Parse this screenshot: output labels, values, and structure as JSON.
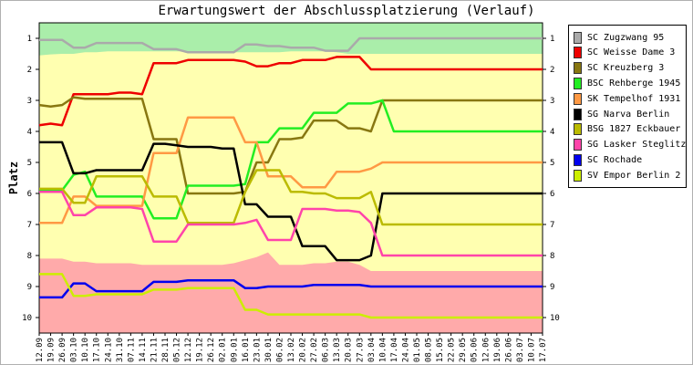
{
  "chart_data": {
    "type": "line",
    "title": "Erwartungswert der Abschlussplatzierung (Verlauf)",
    "ylabel": "Platz",
    "xlabel": "",
    "ylim": [
      10.5,
      0.5
    ],
    "y_ticks": [
      1,
      2,
      3,
      4,
      5,
      6,
      7,
      8,
      9,
      10
    ],
    "y_inverted": true,
    "categories": [
      "12.09",
      "19.09",
      "26.09",
      "03.10",
      "10.10",
      "17.10",
      "24.10",
      "31.10",
      "07.11",
      "14.11",
      "21.11",
      "28.11",
      "05.12",
      "12.12",
      "19.12",
      "26.12",
      "02.01",
      "09.01",
      "16.01",
      "23.01",
      "30.01",
      "06.02",
      "13.02",
      "20.02",
      "27.02",
      "06.03",
      "13.03",
      "20.03",
      "27.03",
      "03.04",
      "10.04",
      "17.04",
      "24.04",
      "01.05",
      "08.05",
      "15.05",
      "22.05",
      "29.05",
      "05.06",
      "12.06",
      "19.06",
      "26.06",
      "03.07",
      "10.07",
      "17.07"
    ],
    "bands": [
      {
        "name": "promotion",
        "color": "#aaeeaa",
        "top_values": [
          0.5,
          0.5,
          0.5,
          0.5,
          0.5,
          0.5,
          0.5,
          0.5,
          0.5,
          0.5,
          0.5,
          0.5,
          0.5,
          0.5,
          0.5,
          0.5,
          0.5,
          0.5,
          0.5,
          0.5,
          0.5,
          0.5,
          0.5,
          0.5,
          0.5,
          0.5,
          0.5,
          0.5,
          0.5,
          0.5,
          0.5,
          0.5,
          0.5,
          0.5,
          0.5,
          0.5,
          0.5,
          0.5,
          0.5,
          0.5,
          0.5,
          0.5,
          0.5,
          0.5,
          0.5
        ],
        "bottom_values": [
          1.55,
          1.52,
          1.5,
          1.5,
          1.45,
          1.45,
          1.42,
          1.42,
          1.42,
          1.42,
          1.42,
          1.42,
          1.42,
          1.42,
          1.42,
          1.42,
          1.42,
          1.45,
          1.45,
          1.45,
          1.45,
          1.45,
          1.42,
          1.42,
          1.42,
          1.42,
          1.45,
          1.5,
          1.5,
          1.5,
          1.5,
          1.5,
          1.5,
          1.5,
          1.5,
          1.5,
          1.5,
          1.5,
          1.5,
          1.5,
          1.5,
          1.5,
          1.5,
          1.5,
          1.5
        ]
      },
      {
        "name": "middle",
        "color": "#ffffb0"
      },
      {
        "name": "relegation",
        "color": "#ffaaaa",
        "top_values": [
          8.1,
          8.1,
          8.1,
          8.2,
          8.2,
          8.25,
          8.25,
          8.25,
          8.25,
          8.3,
          8.3,
          8.3,
          8.3,
          8.3,
          8.3,
          8.3,
          8.3,
          8.25,
          8.15,
          8.05,
          7.9,
          8.3,
          8.3,
          8.3,
          8.25,
          8.25,
          8.2,
          8.2,
          8.3,
          8.5,
          8.5,
          8.5,
          8.5,
          8.5,
          8.5,
          8.5,
          8.5,
          8.5,
          8.5,
          8.5,
          8.5,
          8.5,
          8.5,
          8.5,
          8.5
        ],
        "bottom_values": [
          10.5,
          10.5,
          10.5,
          10.5,
          10.5,
          10.5,
          10.5,
          10.5,
          10.5,
          10.5,
          10.5,
          10.5,
          10.5,
          10.5,
          10.5,
          10.5,
          10.5,
          10.5,
          10.5,
          10.5,
          10.5,
          10.5,
          10.5,
          10.5,
          10.5,
          10.5,
          10.5,
          10.5,
          10.5,
          10.5,
          10.5,
          10.5,
          10.5,
          10.5,
          10.5,
          10.5,
          10.5,
          10.5,
          10.5,
          10.5,
          10.5,
          10.5,
          10.5,
          10.5,
          10.5
        ]
      }
    ],
    "series": [
      {
        "name": "SC Zugzwang 95",
        "color": "#aaaaaa",
        "values": [
          1.05,
          1.05,
          1.05,
          1.3,
          1.3,
          1.15,
          1.15,
          1.15,
          1.15,
          1.15,
          1.35,
          1.35,
          1.35,
          1.45,
          1.45,
          1.45,
          1.45,
          1.45,
          1.2,
          1.2,
          1.25,
          1.25,
          1.3,
          1.3,
          1.3,
          1.4,
          1.4,
          1.4,
          1.0,
          1.0,
          1.0,
          1.0,
          1.0,
          1.0,
          1.0,
          1.0,
          1.0,
          1.0,
          1.0,
          1.0,
          1.0,
          1.0,
          1.0,
          1.0,
          1.0
        ]
      },
      {
        "name": "SC Weisse Dame 3",
        "color": "#ee0000",
        "values": [
          3.8,
          3.75,
          3.8,
          2.8,
          2.8,
          2.8,
          2.8,
          2.75,
          2.75,
          2.8,
          1.8,
          1.8,
          1.8,
          1.7,
          1.7,
          1.7,
          1.7,
          1.7,
          1.75,
          1.9,
          1.9,
          1.8,
          1.8,
          1.7,
          1.7,
          1.7,
          1.6,
          1.6,
          1.6,
          2.0,
          2.0,
          2.0,
          2.0,
          2.0,
          2.0,
          2.0,
          2.0,
          2.0,
          2.0,
          2.0,
          2.0,
          2.0,
          2.0,
          2.0,
          2.0
        ]
      },
      {
        "name": "SC Kreuzberg 3",
        "color": "#887711",
        "values": [
          3.15,
          3.2,
          3.15,
          2.9,
          2.95,
          2.95,
          2.95,
          2.95,
          2.95,
          2.95,
          4.25,
          4.25,
          4.25,
          6.0,
          6.0,
          6.0,
          6.0,
          6.0,
          5.95,
          5.0,
          5.0,
          4.25,
          4.25,
          4.2,
          3.65,
          3.65,
          3.65,
          3.9,
          3.9,
          4.0,
          3.0,
          3.0,
          3.0,
          3.0,
          3.0,
          3.0,
          3.0,
          3.0,
          3.0,
          3.0,
          3.0,
          3.0,
          3.0,
          3.0,
          3.0
        ]
      },
      {
        "name": "BSC Rehberge 1945",
        "color": "#22ee22",
        "values": [
          5.9,
          5.9,
          5.9,
          5.4,
          5.3,
          6.1,
          6.1,
          6.1,
          6.1,
          6.1,
          6.8,
          6.8,
          6.8,
          5.75,
          5.75,
          5.75,
          5.75,
          5.75,
          5.7,
          4.35,
          4.35,
          3.9,
          3.9,
          3.9,
          3.4,
          3.4,
          3.4,
          3.1,
          3.1,
          3.1,
          3.0,
          4.0,
          4.0,
          4.0,
          4.0,
          4.0,
          4.0,
          4.0,
          4.0,
          4.0,
          4.0,
          4.0,
          4.0,
          4.0,
          4.0
        ]
      },
      {
        "name": "SK Tempelhof 1931",
        "color": "#ff9944",
        "values": [
          6.95,
          6.95,
          6.95,
          6.1,
          6.1,
          6.4,
          6.4,
          6.4,
          6.4,
          6.4,
          4.7,
          4.7,
          4.7,
          3.55,
          3.55,
          3.55,
          3.55,
          3.55,
          4.35,
          4.35,
          5.45,
          5.45,
          5.45,
          5.8,
          5.8,
          5.8,
          5.3,
          5.3,
          5.3,
          5.2,
          5.0,
          5.0,
          5.0,
          5.0,
          5.0,
          5.0,
          5.0,
          5.0,
          5.0,
          5.0,
          5.0,
          5.0,
          5.0,
          5.0,
          5.0
        ]
      },
      {
        "name": "SG Narva Berlin",
        "color": "#000000",
        "values": [
          4.35,
          4.35,
          4.35,
          5.35,
          5.35,
          5.25,
          5.25,
          5.25,
          5.25,
          5.25,
          4.4,
          4.4,
          4.45,
          4.5,
          4.5,
          4.5,
          4.55,
          4.55,
          6.35,
          6.35,
          6.75,
          6.75,
          6.75,
          7.7,
          7.7,
          7.7,
          8.15,
          8.15,
          8.15,
          8.0,
          6.0,
          6.0,
          6.0,
          6.0,
          6.0,
          6.0,
          6.0,
          6.0,
          6.0,
          6.0,
          6.0,
          6.0,
          6.0,
          6.0,
          6.0
        ]
      },
      {
        "name": "BSG 1827 Eckbauer",
        "color": "#bbbb00",
        "values": [
          5.85,
          5.85,
          5.85,
          6.3,
          6.3,
          5.45,
          5.45,
          5.45,
          5.45,
          5.45,
          6.1,
          6.1,
          6.1,
          6.95,
          6.95,
          6.95,
          6.95,
          6.95,
          5.95,
          5.25,
          5.25,
          5.25,
          5.95,
          5.95,
          6.0,
          6.0,
          6.15,
          6.15,
          6.15,
          5.95,
          7.0,
          7.0,
          7.0,
          7.0,
          7.0,
          7.0,
          7.0,
          7.0,
          7.0,
          7.0,
          7.0,
          7.0,
          7.0,
          7.0,
          7.0
        ]
      },
      {
        "name": "SG Lasker Steglitz",
        "color": "#ff44aa",
        "values": [
          5.95,
          5.95,
          5.95,
          6.7,
          6.7,
          6.45,
          6.45,
          6.45,
          6.45,
          6.5,
          7.55,
          7.55,
          7.55,
          7.0,
          7.0,
          7.0,
          7.0,
          7.0,
          6.95,
          6.85,
          7.5,
          7.5,
          7.5,
          6.5,
          6.5,
          6.5,
          6.55,
          6.55,
          6.6,
          6.95,
          8.0,
          8.0,
          8.0,
          8.0,
          8.0,
          8.0,
          8.0,
          8.0,
          8.0,
          8.0,
          8.0,
          8.0,
          8.0,
          8.0,
          8.0
        ]
      },
      {
        "name": "SC Rochade",
        "color": "#0000ee",
        "values": [
          9.35,
          9.35,
          9.35,
          8.9,
          8.9,
          9.15,
          9.15,
          9.15,
          9.15,
          9.15,
          8.85,
          8.85,
          8.85,
          8.8,
          8.8,
          8.8,
          8.8,
          8.8,
          9.05,
          9.05,
          9.0,
          9.0,
          9.0,
          9.0,
          8.95,
          8.95,
          8.95,
          8.95,
          8.95,
          9.0,
          9.0,
          9.0,
          9.0,
          9.0,
          9.0,
          9.0,
          9.0,
          9.0,
          9.0,
          9.0,
          9.0,
          9.0,
          9.0,
          9.0,
          9.0
        ]
      },
      {
        "name": "SV Empor Berlin 2",
        "color": "#ccee00",
        "values": [
          8.6,
          8.6,
          8.6,
          9.3,
          9.3,
          9.25,
          9.25,
          9.25,
          9.25,
          9.25,
          9.1,
          9.1,
          9.1,
          9.05,
          9.05,
          9.05,
          9.05,
          9.05,
          9.75,
          9.75,
          9.9,
          9.9,
          9.9,
          9.9,
          9.9,
          9.9,
          9.9,
          9.9,
          9.9,
          10.0,
          10.0,
          10.0,
          10.0,
          10.0,
          10.0,
          10.0,
          10.0,
          10.0,
          10.0,
          10.0,
          10.0,
          10.0,
          10.0,
          10.0,
          10.0
        ]
      }
    ],
    "legend_position": "right",
    "grid": false
  }
}
